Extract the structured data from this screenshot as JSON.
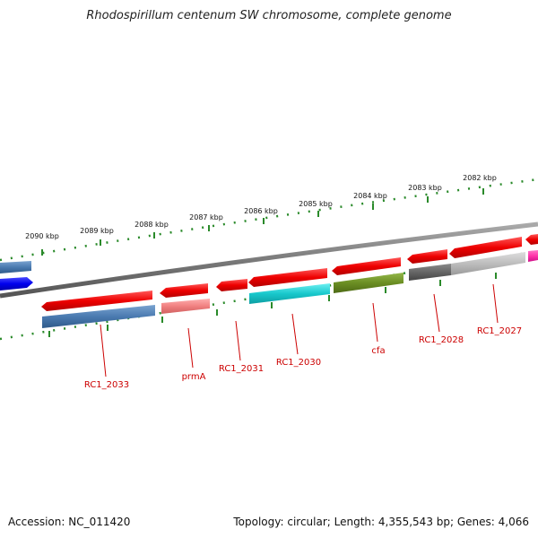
{
  "title": "Rhodospirillum centenum SW chromosome, complete genome",
  "footer": {
    "accession": "Accession: NC_011420",
    "summary": "Topology: circular; Length: 4,355,543 bp; Genes: 4,066"
  },
  "scale_ticks": [
    "2090 kbp",
    "2089 kbp",
    "2088 kbp",
    "2087 kbp",
    "2086 kbp",
    "2085 kbp",
    "2084 kbp",
    "2083 kbp",
    "2082 kbp"
  ],
  "gene_labels": [
    "RC1_2033",
    "prmA",
    "RC1_2031",
    "RC1_2030",
    "cfa",
    "RC1_2028",
    "RC1_2027"
  ],
  "colors": {
    "backbone": "#7a7a7a",
    "ticks": "#2a8a2a",
    "label": "#cc0000",
    "red_feature": "#ee0000",
    "steel_blue": "#4a7ab0",
    "pink": "#f08080",
    "cyan": "#18c8cc",
    "olive": "#6b8e23",
    "dark_gray": "#666666",
    "light_gray": "#bdbdbd",
    "blue": "#0000ee",
    "magenta": "#ff33aa"
  }
}
